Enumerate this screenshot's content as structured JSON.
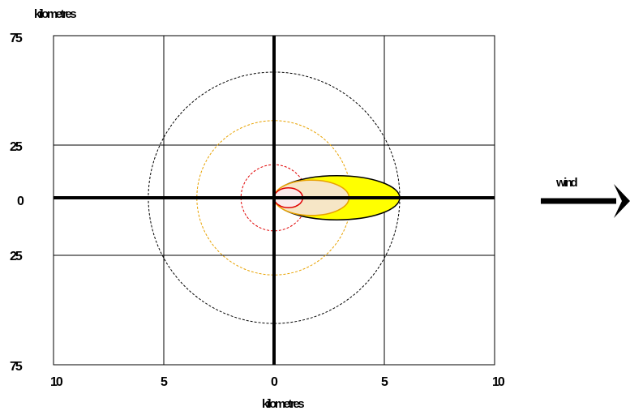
{
  "y_axis_title": "kilometres",
  "x_axis_title": "kilometres",
  "wind_label": "wind",
  "x_ticks": [
    "10",
    "5",
    "0",
    "5",
    "10"
  ],
  "y_ticks": [
    "75",
    "25",
    "0",
    "25",
    "75"
  ],
  "colors": {
    "outer_ring": "#000000",
    "middle_ring": "#e8a200",
    "inner_ring": "#e00000",
    "large_plume_fill": "#ffff00",
    "medium_plume_fill": "#f6e6c6",
    "small_plume_fill": "#fbeaea"
  },
  "plumes": [
    {
      "name": "large-plume",
      "x_from": 0,
      "x_to": 5.7,
      "half_width": 1.0,
      "fill": "#ffff00",
      "stroke": "#000000"
    },
    {
      "name": "medium-plume",
      "x_from": 0,
      "x_to": 3.4,
      "half_width": 0.8,
      "fill": "#f6e6c6",
      "stroke": "#e8a200"
    },
    {
      "name": "small-plume",
      "x_from": 0,
      "x_to": 1.3,
      "half_width": 0.45,
      "fill": "#fbeaea",
      "stroke": "#e00000"
    }
  ],
  "rings": [
    {
      "name": "outer-ring",
      "radius": 5.7,
      "color": "#000000"
    },
    {
      "name": "middle-ring",
      "radius": 3.5,
      "color": "#e8a200"
    },
    {
      "name": "inner-ring",
      "radius": 1.5,
      "color": "#e00000"
    }
  ]
}
